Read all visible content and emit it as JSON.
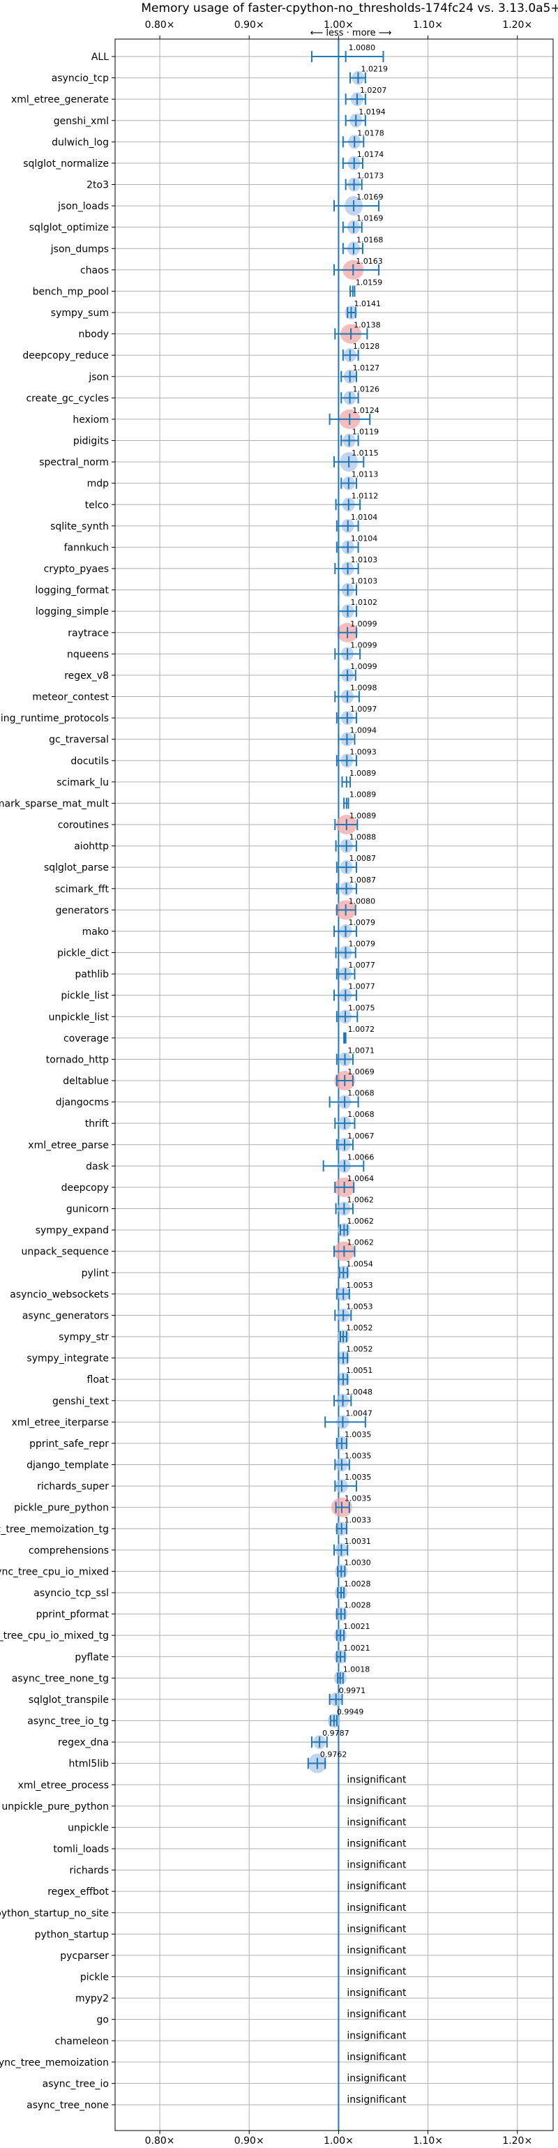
{
  "chart_data": {
    "type": "scatter",
    "title": "Memory usage of faster-cpython-no_thresholds-174fc24 vs. 3.13.0a5+",
    "direction_note": "⟵ less · more ⟶",
    "xlim": [
      0.75,
      1.24
    ],
    "x_ticks": [
      0.8,
      0.9,
      1.0,
      1.1,
      1.2
    ],
    "x_tick_labels": [
      "0.80×",
      "0.90×",
      "1.00×",
      "1.10×",
      "1.20×"
    ],
    "reference_line": 1.0,
    "grid": true,
    "insignificant_label": "insignificant",
    "colors": {
      "accent": "#1f77b4",
      "blob": "#aec7e8",
      "blob_alt": "#f4a6a6",
      "grid": "#b0b0b0"
    },
    "benchmarks": [
      {
        "name": "ALL",
        "value": 1.008,
        "label": "1.0080",
        "err_lo": 0.97,
        "err_hi": 1.05,
        "blob": 0
      },
      {
        "name": "asyncio_tcp",
        "value": 1.0219,
        "label": "1.0219",
        "err_lo": 1.013,
        "err_hi": 1.03,
        "blob": 1
      },
      {
        "name": "xml_etree_generate",
        "value": 1.0207,
        "label": "1.0207",
        "err_lo": 1.008,
        "err_hi": 1.03,
        "blob": 1
      },
      {
        "name": "genshi_xml",
        "value": 1.0194,
        "label": "1.0194",
        "err_lo": 1.008,
        "err_hi": 1.03,
        "blob": 1
      },
      {
        "name": "dulwich_log",
        "value": 1.0178,
        "label": "1.0178",
        "err_lo": 1.005,
        "err_hi": 1.028,
        "blob": 1
      },
      {
        "name": "sqlglot_normalize",
        "value": 1.0174,
        "label": "1.0174",
        "err_lo": 1.005,
        "err_hi": 1.027,
        "blob": 1
      },
      {
        "name": "2to3",
        "value": 1.0173,
        "label": "1.0173",
        "err_lo": 1.008,
        "err_hi": 1.026,
        "blob": 1
      },
      {
        "name": "json_loads",
        "value": 1.0169,
        "label": "1.0169",
        "err_lo": 0.995,
        "err_hi": 1.045,
        "blob": 2
      },
      {
        "name": "sqlglot_optimize",
        "value": 1.0169,
        "label": "1.0169",
        "err_lo": 1.005,
        "err_hi": 1.026,
        "blob": 1
      },
      {
        "name": "json_dumps",
        "value": 1.0168,
        "label": "1.0168",
        "err_lo": 1.005,
        "err_hi": 1.027,
        "blob": 1
      },
      {
        "name": "chaos",
        "value": 1.0163,
        "label": "1.0163",
        "err_lo": 0.995,
        "err_hi": 1.045,
        "blob": 3
      },
      {
        "name": "bench_mp_pool",
        "value": 1.0159,
        "label": "1.0159",
        "err_lo": 1.013,
        "err_hi": 1.018,
        "blob": 0
      },
      {
        "name": "sympy_sum",
        "value": 1.0141,
        "label": "1.0141",
        "err_lo": 1.01,
        "err_hi": 1.019,
        "blob": 1
      },
      {
        "name": "nbody",
        "value": 1.0138,
        "label": "1.0138",
        "err_lo": 0.996,
        "err_hi": 1.032,
        "blob": 3
      },
      {
        "name": "deepcopy_reduce",
        "value": 1.0128,
        "label": "1.0128",
        "err_lo": 1.005,
        "err_hi": 1.022,
        "blob": 1
      },
      {
        "name": "json",
        "value": 1.0127,
        "label": "1.0127",
        "err_lo": 1.003,
        "err_hi": 1.02,
        "blob": 1
      },
      {
        "name": "create_gc_cycles",
        "value": 1.0126,
        "label": "1.0126",
        "err_lo": 1.003,
        "err_hi": 1.022,
        "blob": 1
      },
      {
        "name": "hexiom",
        "value": 1.0124,
        "label": "1.0124",
        "err_lo": 0.99,
        "err_hi": 1.035,
        "blob": 3
      },
      {
        "name": "pidigits",
        "value": 1.0119,
        "label": "1.0119",
        "err_lo": 1.003,
        "err_hi": 1.022,
        "blob": 1
      },
      {
        "name": "spectral_norm",
        "value": 1.0115,
        "label": "1.0115",
        "err_lo": 0.995,
        "err_hi": 1.028,
        "blob": 2
      },
      {
        "name": "mdp",
        "value": 1.0113,
        "label": "1.0113",
        "err_lo": 1.003,
        "err_hi": 1.02,
        "blob": 1
      },
      {
        "name": "telco",
        "value": 1.0112,
        "label": "1.0112",
        "err_lo": 0.997,
        "err_hi": 1.024,
        "blob": 1
      },
      {
        "name": "sqlite_synth",
        "value": 1.0104,
        "label": "1.0104",
        "err_lo": 0.998,
        "err_hi": 1.022,
        "blob": 1
      },
      {
        "name": "fannkuch",
        "value": 1.0104,
        "label": "1.0104",
        "err_lo": 0.998,
        "err_hi": 1.022,
        "blob": 1
      },
      {
        "name": "crypto_pyaes",
        "value": 1.0103,
        "label": "1.0103",
        "err_lo": 0.996,
        "err_hi": 1.022,
        "blob": 1
      },
      {
        "name": "logging_format",
        "value": 1.0103,
        "label": "1.0103",
        "err_lo": 1.0,
        "err_hi": 1.02,
        "blob": 1
      },
      {
        "name": "logging_simple",
        "value": 1.0102,
        "label": "1.0102",
        "err_lo": 1.0,
        "err_hi": 1.02,
        "blob": 1
      },
      {
        "name": "raytrace",
        "value": 1.0099,
        "label": "1.0099",
        "err_lo": 1.0,
        "err_hi": 1.02,
        "blob": 3
      },
      {
        "name": "nqueens",
        "value": 1.0099,
        "label": "1.0099",
        "err_lo": 0.996,
        "err_hi": 1.024,
        "blob": 1
      },
      {
        "name": "regex_v8",
        "value": 1.0099,
        "label": "1.0099",
        "err_lo": 1.0,
        "err_hi": 1.019,
        "blob": 1
      },
      {
        "name": "meteor_contest",
        "value": 1.0098,
        "label": "1.0098",
        "err_lo": 0.996,
        "err_hi": 1.023,
        "blob": 1
      },
      {
        "name": "typing_runtime_protocols",
        "value": 1.0097,
        "label": "1.0097",
        "err_lo": 0.998,
        "err_hi": 1.02,
        "blob": 1
      },
      {
        "name": "gc_traversal",
        "value": 1.0094,
        "label": "1.0094",
        "err_lo": 1.0,
        "err_hi": 1.018,
        "blob": 1
      },
      {
        "name": "docutils",
        "value": 1.0093,
        "label": "1.0093",
        "err_lo": 0.998,
        "err_hi": 1.02,
        "blob": 1
      },
      {
        "name": "scimark_lu",
        "value": 1.0089,
        "label": "1.0089",
        "err_lo": 1.004,
        "err_hi": 1.013,
        "blob": 0
      },
      {
        "name": "scimark_sparse_mat_mult",
        "value": 1.0089,
        "label": "1.0089",
        "err_lo": 1.006,
        "err_hi": 1.011,
        "blob": 0
      },
      {
        "name": "coroutines",
        "value": 1.0089,
        "label": "1.0089",
        "err_lo": 0.996,
        "err_hi": 1.021,
        "blob": 3
      },
      {
        "name": "aiohttp",
        "value": 1.0088,
        "label": "1.0088",
        "err_lo": 0.997,
        "err_hi": 1.02,
        "blob": 1
      },
      {
        "name": "sqlglot_parse",
        "value": 1.0087,
        "label": "1.0087",
        "err_lo": 0.998,
        "err_hi": 1.02,
        "blob": 1
      },
      {
        "name": "scimark_fft",
        "value": 1.0087,
        "label": "1.0087",
        "err_lo": 0.998,
        "err_hi": 1.02,
        "blob": 1
      },
      {
        "name": "generators",
        "value": 1.008,
        "label": "1.0080",
        "err_lo": 0.998,
        "err_hi": 1.019,
        "blob": 3
      },
      {
        "name": "mako",
        "value": 1.0079,
        "label": "1.0079",
        "err_lo": 0.995,
        "err_hi": 1.02,
        "blob": 1
      },
      {
        "name": "pickle_dict",
        "value": 1.0079,
        "label": "1.0079",
        "err_lo": 0.997,
        "err_hi": 1.019,
        "blob": 1
      },
      {
        "name": "pathlib",
        "value": 1.0077,
        "label": "1.0077",
        "err_lo": 0.998,
        "err_hi": 1.018,
        "blob": 1
      },
      {
        "name": "pickle_list",
        "value": 1.0077,
        "label": "1.0077",
        "err_lo": 0.995,
        "err_hi": 1.02,
        "blob": 1
      },
      {
        "name": "unpickle_list",
        "value": 1.0075,
        "label": "1.0075",
        "err_lo": 0.998,
        "err_hi": 1.021,
        "blob": 1
      },
      {
        "name": "coverage",
        "value": 1.0072,
        "label": "1.0072",
        "err_lo": 1.006,
        "err_hi": 1.008,
        "blob": 0
      },
      {
        "name": "tornado_http",
        "value": 1.0071,
        "label": "1.0071",
        "err_lo": 0.998,
        "err_hi": 1.016,
        "blob": 1
      },
      {
        "name": "deltablue",
        "value": 1.0069,
        "label": "1.0069",
        "err_lo": 0.998,
        "err_hi": 1.016,
        "blob": 3
      },
      {
        "name": "djangocms",
        "value": 1.0068,
        "label": "1.0068",
        "err_lo": 0.99,
        "err_hi": 1.022,
        "blob": 1
      },
      {
        "name": "thrift",
        "value": 1.0068,
        "label": "1.0068",
        "err_lo": 0.996,
        "err_hi": 1.018,
        "blob": 1
      },
      {
        "name": "xml_etree_parse",
        "value": 1.0067,
        "label": "1.0067",
        "err_lo": 0.998,
        "err_hi": 1.016,
        "blob": 1
      },
      {
        "name": "dask",
        "value": 1.0066,
        "label": "1.0066",
        "err_lo": 0.983,
        "err_hi": 1.028,
        "blob": 1
      },
      {
        "name": "deepcopy",
        "value": 1.0064,
        "label": "1.0064",
        "err_lo": 0.996,
        "err_hi": 1.017,
        "blob": 3
      },
      {
        "name": "gunicorn",
        "value": 1.0062,
        "label": "1.0062",
        "err_lo": 0.997,
        "err_hi": 1.016,
        "blob": 1
      },
      {
        "name": "sympy_expand",
        "value": 1.0062,
        "label": "1.0062",
        "err_lo": 1.002,
        "err_hi": 1.01,
        "blob": 1
      },
      {
        "name": "unpack_sequence",
        "value": 1.0062,
        "label": "1.0062",
        "err_lo": 0.995,
        "err_hi": 1.018,
        "blob": 3
      },
      {
        "name": "pylint",
        "value": 1.0054,
        "label": "1.0054",
        "err_lo": 1.001,
        "err_hi": 1.01,
        "blob": 1
      },
      {
        "name": "asyncio_websockets",
        "value": 1.0053,
        "label": "1.0053",
        "err_lo": 0.998,
        "err_hi": 1.012,
        "blob": 1
      },
      {
        "name": "async_generators",
        "value": 1.0053,
        "label": "1.0053",
        "err_lo": 0.996,
        "err_hi": 1.014,
        "blob": 1
      },
      {
        "name": "sympy_str",
        "value": 1.0052,
        "label": "1.0052",
        "err_lo": 1.002,
        "err_hi": 1.009,
        "blob": 1
      },
      {
        "name": "sympy_integrate",
        "value": 1.0052,
        "label": "1.0052",
        "err_lo": 1.0,
        "err_hi": 1.01,
        "blob": 1
      },
      {
        "name": "float",
        "value": 1.0051,
        "label": "1.0051",
        "err_lo": 1.0,
        "err_hi": 1.01,
        "blob": 1
      },
      {
        "name": "genshi_text",
        "value": 1.0048,
        "label": "1.0048",
        "err_lo": 0.995,
        "err_hi": 1.014,
        "blob": 1
      },
      {
        "name": "xml_etree_iterparse",
        "value": 1.0047,
        "label": "1.0047",
        "err_lo": 0.985,
        "err_hi": 1.03,
        "blob": 1
      },
      {
        "name": "pprint_safe_repr",
        "value": 1.0035,
        "label": "1.0035",
        "err_lo": 0.998,
        "err_hi": 1.009,
        "blob": 1
      },
      {
        "name": "django_template",
        "value": 1.0035,
        "label": "1.0035",
        "err_lo": 0.996,
        "err_hi": 1.012,
        "blob": 1
      },
      {
        "name": "richards_super",
        "value": 1.0035,
        "label": "1.0035",
        "err_lo": 0.996,
        "err_hi": 1.02,
        "blob": 1
      },
      {
        "name": "pickle_pure_python",
        "value": 1.0035,
        "label": "1.0035",
        "err_lo": 0.997,
        "err_hi": 1.012,
        "blob": 3
      },
      {
        "name": "async_tree_memoization_tg",
        "value": 1.0033,
        "label": "1.0033",
        "err_lo": 0.998,
        "err_hi": 1.009,
        "blob": 1
      },
      {
        "name": "comprehensions",
        "value": 1.0031,
        "label": "1.0031",
        "err_lo": 0.995,
        "err_hi": 1.01,
        "blob": 1
      },
      {
        "name": "async_tree_cpu_io_mixed",
        "value": 1.003,
        "label": "1.0030",
        "err_lo": 0.999,
        "err_hi": 1.007,
        "blob": 1
      },
      {
        "name": "asyncio_tcp_ssl",
        "value": 1.0028,
        "label": "1.0028",
        "err_lo": 0.999,
        "err_hi": 1.006,
        "blob": 1
      },
      {
        "name": "pprint_pformat",
        "value": 1.0028,
        "label": "1.0028",
        "err_lo": 0.998,
        "err_hi": 1.007,
        "blob": 1
      },
      {
        "name": "async_tree_cpu_io_mixed_tg",
        "value": 1.0021,
        "label": "1.0021",
        "err_lo": 0.998,
        "err_hi": 1.006,
        "blob": 1
      },
      {
        "name": "pyflate",
        "value": 1.0021,
        "label": "1.0021",
        "err_lo": 0.998,
        "err_hi": 1.007,
        "blob": 1
      },
      {
        "name": "async_tree_none_tg",
        "value": 1.0018,
        "label": "1.0018",
        "err_lo": 0.999,
        "err_hi": 1.005,
        "blob": 1
      },
      {
        "name": "sqlglot_transpile",
        "value": 0.9971,
        "label": "0.9971",
        "err_lo": 0.99,
        "err_hi": 1.004,
        "blob": 1
      },
      {
        "name": "async_tree_io_tg",
        "value": 0.9949,
        "label": "0.9949",
        "err_lo": 0.991,
        "err_hi": 0.998,
        "blob": 1
      },
      {
        "name": "regex_dna",
        "value": 0.9787,
        "label": "0.9787",
        "err_lo": 0.97,
        "err_hi": 0.987,
        "blob": 1
      },
      {
        "name": "html5lib",
        "value": 0.9762,
        "label": "0.9762",
        "err_lo": 0.966,
        "err_hi": 0.985,
        "blob": 2
      },
      {
        "name": "xml_etree_process",
        "insignificant": true
      },
      {
        "name": "unpickle_pure_python",
        "insignificant": true
      },
      {
        "name": "unpickle",
        "insignificant": true
      },
      {
        "name": "tomli_loads",
        "insignificant": true
      },
      {
        "name": "richards",
        "insignificant": true
      },
      {
        "name": "regex_effbot",
        "insignificant": true
      },
      {
        "name": "python_startup_no_site",
        "insignificant": true
      },
      {
        "name": "python_startup",
        "insignificant": true
      },
      {
        "name": "pycparser",
        "insignificant": true
      },
      {
        "name": "pickle",
        "insignificant": true
      },
      {
        "name": "mypy2",
        "insignificant": true
      },
      {
        "name": "go",
        "insignificant": true
      },
      {
        "name": "chameleon",
        "insignificant": true
      },
      {
        "name": "async_tree_memoization",
        "insignificant": true
      },
      {
        "name": "async_tree_io",
        "insignificant": true
      },
      {
        "name": "async_tree_none",
        "insignificant": true
      }
    ]
  }
}
